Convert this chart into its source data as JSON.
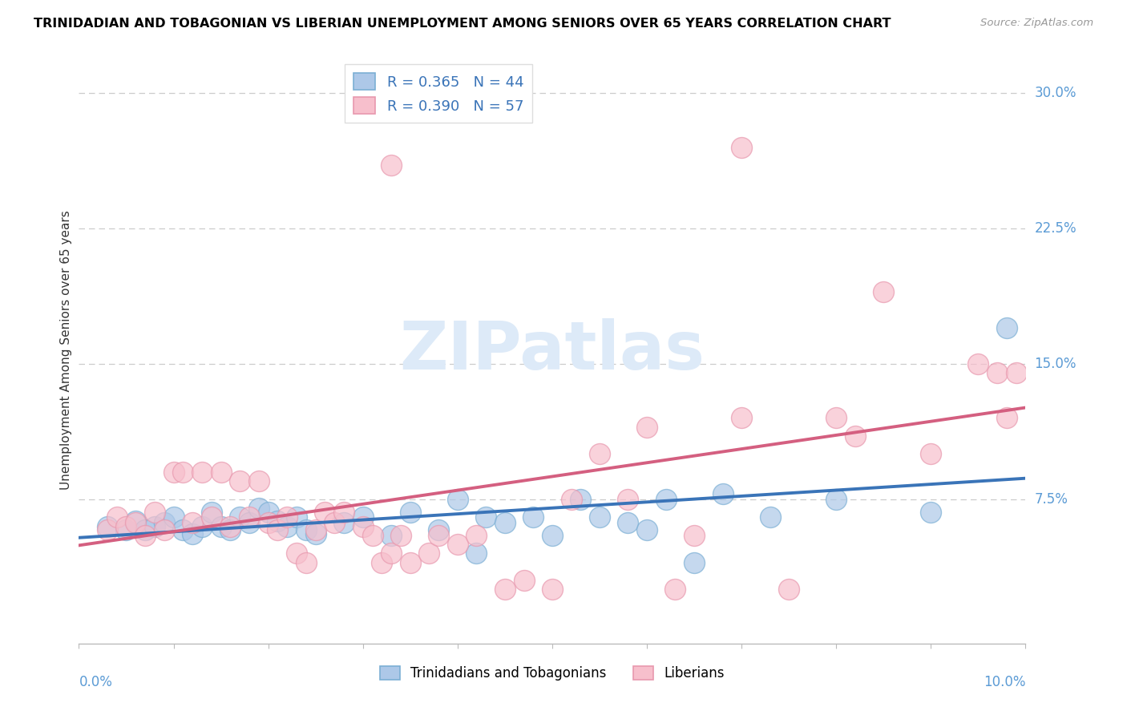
{
  "title": "TRINIDADIAN AND TOBAGONIAN VS LIBERIAN UNEMPLOYMENT AMONG SENIORS OVER 65 YEARS CORRELATION CHART",
  "source": "Source: ZipAtlas.com",
  "ylabel": "Unemployment Among Seniors over 65 years",
  "x_range": [
    0.0,
    0.1
  ],
  "y_range": [
    -0.005,
    0.32
  ],
  "legend_blue_R": "0.365",
  "legend_blue_N": "44",
  "legend_pink_R": "0.390",
  "legend_pink_N": "57",
  "blue_color": "#adc8e8",
  "pink_color": "#f7bfcc",
  "blue_edge_color": "#7bafd4",
  "pink_edge_color": "#e898ae",
  "blue_line_color": "#3a74b8",
  "pink_line_color": "#d45f80",
  "watermark_color": "#ddeaf8",
  "blue_points": [
    [
      0.003,
      0.06
    ],
    [
      0.005,
      0.058
    ],
    [
      0.006,
      0.063
    ],
    [
      0.007,
      0.058
    ],
    [
      0.008,
      0.06
    ],
    [
      0.009,
      0.062
    ],
    [
      0.01,
      0.065
    ],
    [
      0.011,
      0.058
    ],
    [
      0.012,
      0.056
    ],
    [
      0.013,
      0.06
    ],
    [
      0.014,
      0.068
    ],
    [
      0.015,
      0.06
    ],
    [
      0.016,
      0.058
    ],
    [
      0.017,
      0.065
    ],
    [
      0.018,
      0.062
    ],
    [
      0.019,
      0.07
    ],
    [
      0.02,
      0.068
    ],
    [
      0.021,
      0.063
    ],
    [
      0.022,
      0.06
    ],
    [
      0.023,
      0.065
    ],
    [
      0.024,
      0.058
    ],
    [
      0.025,
      0.056
    ],
    [
      0.028,
      0.062
    ],
    [
      0.03,
      0.065
    ],
    [
      0.033,
      0.055
    ],
    [
      0.035,
      0.068
    ],
    [
      0.038,
      0.058
    ],
    [
      0.04,
      0.075
    ],
    [
      0.042,
      0.045
    ],
    [
      0.043,
      0.065
    ],
    [
      0.045,
      0.062
    ],
    [
      0.048,
      0.065
    ],
    [
      0.05,
      0.055
    ],
    [
      0.053,
      0.075
    ],
    [
      0.055,
      0.065
    ],
    [
      0.058,
      0.062
    ],
    [
      0.06,
      0.058
    ],
    [
      0.062,
      0.075
    ],
    [
      0.065,
      0.04
    ],
    [
      0.068,
      0.078
    ],
    [
      0.073,
      0.065
    ],
    [
      0.08,
      0.075
    ],
    [
      0.09,
      0.068
    ],
    [
      0.098,
      0.17
    ]
  ],
  "pink_points": [
    [
      0.003,
      0.058
    ],
    [
      0.004,
      0.065
    ],
    [
      0.005,
      0.06
    ],
    [
      0.006,
      0.062
    ],
    [
      0.007,
      0.055
    ],
    [
      0.008,
      0.068
    ],
    [
      0.009,
      0.058
    ],
    [
      0.01,
      0.09
    ],
    [
      0.011,
      0.09
    ],
    [
      0.012,
      0.062
    ],
    [
      0.013,
      0.09
    ],
    [
      0.014,
      0.065
    ],
    [
      0.015,
      0.09
    ],
    [
      0.016,
      0.06
    ],
    [
      0.017,
      0.085
    ],
    [
      0.018,
      0.065
    ],
    [
      0.019,
      0.085
    ],
    [
      0.02,
      0.062
    ],
    [
      0.021,
      0.058
    ],
    [
      0.022,
      0.065
    ],
    [
      0.023,
      0.045
    ],
    [
      0.024,
      0.04
    ],
    [
      0.025,
      0.058
    ],
    [
      0.026,
      0.068
    ],
    [
      0.027,
      0.062
    ],
    [
      0.028,
      0.068
    ],
    [
      0.03,
      0.06
    ],
    [
      0.031,
      0.055
    ],
    [
      0.032,
      0.04
    ],
    [
      0.033,
      0.045
    ],
    [
      0.034,
      0.055
    ],
    [
      0.035,
      0.04
    ],
    [
      0.037,
      0.045
    ],
    [
      0.038,
      0.055
    ],
    [
      0.04,
      0.05
    ],
    [
      0.042,
      0.055
    ],
    [
      0.045,
      0.025
    ],
    [
      0.047,
      0.03
    ],
    [
      0.05,
      0.025
    ],
    [
      0.052,
      0.075
    ],
    [
      0.055,
      0.1
    ],
    [
      0.058,
      0.075
    ],
    [
      0.06,
      0.115
    ],
    [
      0.063,
      0.025
    ],
    [
      0.065,
      0.055
    ],
    [
      0.07,
      0.12
    ],
    [
      0.075,
      0.025
    ],
    [
      0.08,
      0.12
    ],
    [
      0.082,
      0.11
    ],
    [
      0.033,
      0.26
    ],
    [
      0.07,
      0.27
    ],
    [
      0.085,
      0.19
    ],
    [
      0.09,
      0.1
    ],
    [
      0.095,
      0.15
    ],
    [
      0.097,
      0.145
    ],
    [
      0.098,
      0.12
    ],
    [
      0.099,
      0.145
    ]
  ],
  "ytick_vals": [
    0.075,
    0.15,
    0.225,
    0.3
  ],
  "ytick_labels": [
    "7.5%",
    "15.0%",
    "22.5%",
    "30.0%"
  ]
}
